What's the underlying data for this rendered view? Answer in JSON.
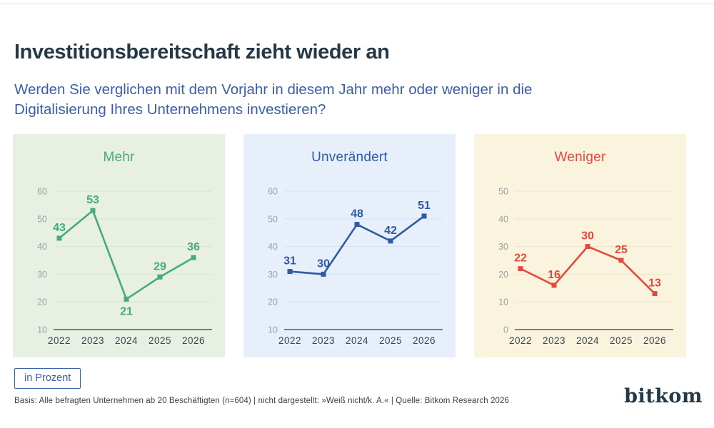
{
  "header": {
    "title": "Investitionsbereitschaft zieht wieder an",
    "subtitle_lines": [
      "Werden Sie verglichen mit dem Vorjahr in diesem Jahr mehr oder weniger in die",
      "Digitalisierung Ihres Unternehmens investieren?"
    ]
  },
  "footer": {
    "unit_badge": "in Prozent",
    "source": "Basis: Alle befragten Unternehmen ab 20 Beschäftigten (n=604) | nicht dargestellt: »Weiß nicht/k. A.« | Quelle: Bitkom Research 2026",
    "logo": "bitkom"
  },
  "colors": {
    "title_text": "#233848",
    "subtitle_text": "#3a5fa8",
    "badge_blue": "#3a5fa8",
    "axis_line": "#4d5963",
    "tick_label": "#9aa2a2",
    "year_label": "#374552",
    "source_text": "#3a4149",
    "logo_text": "#233848"
  },
  "chart_data": [
    {
      "type": "line",
      "title": "Mehr",
      "categories": [
        "2022",
        "2023",
        "2024",
        "2025",
        "2026"
      ],
      "values": [
        43,
        53,
        21,
        29,
        36
      ],
      "ylim": [
        10,
        60
      ],
      "yticks": [
        10,
        20,
        30,
        40,
        50,
        60
      ],
      "unit": "Prozent",
      "grid": true,
      "legend": "none",
      "line_color": "#45ab7c",
      "panel_bg": "#e7f0e2",
      "grid_color": "#d6e4d1",
      "label_positions": [
        "above",
        "above",
        "below",
        "above",
        "above"
      ]
    },
    {
      "type": "line",
      "title": "Unverändert",
      "categories": [
        "2022",
        "2023",
        "2024",
        "2025",
        "2026"
      ],
      "values": [
        31,
        30,
        48,
        42,
        51
      ],
      "ylim": [
        10,
        60
      ],
      "yticks": [
        10,
        20,
        30,
        40,
        50,
        60
      ],
      "unit": "Prozent",
      "grid": true,
      "legend": "none",
      "line_color": "#2e5ba6",
      "panel_bg": "#e7effa",
      "grid_color": "#d5e1f1",
      "label_positions": [
        "above",
        "above",
        "above",
        "above",
        "above"
      ]
    },
    {
      "type": "line",
      "title": "Weniger",
      "categories": [
        "2022",
        "2023",
        "2024",
        "2025",
        "2026"
      ],
      "values": [
        22,
        16,
        30,
        25,
        13
      ],
      "ylim": [
        0,
        50
      ],
      "yticks": [
        0,
        10,
        20,
        30,
        40,
        50
      ],
      "unit": "Prozent",
      "grid": true,
      "legend": "none",
      "line_color": "#e14b3d",
      "panel_bg": "#faf3de",
      "grid_color": "#eee4ca",
      "label_positions": [
        "above",
        "above",
        "above",
        "above",
        "above"
      ]
    }
  ]
}
